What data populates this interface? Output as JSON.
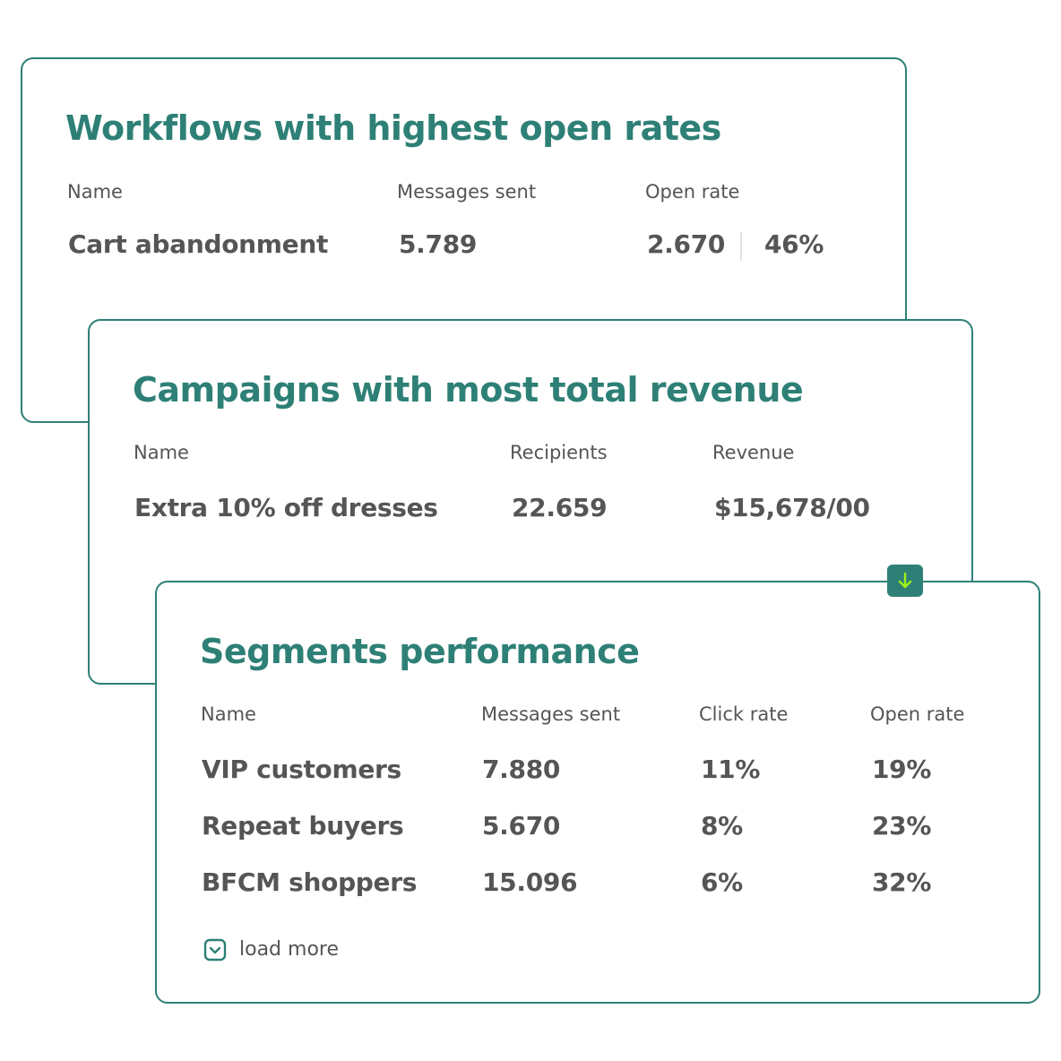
{
  "workflows": {
    "title": "Workflows with highest open rates",
    "headers": {
      "name": "Name",
      "messages_sent": "Messages sent",
      "open_rate": "Open rate"
    },
    "row": {
      "name": "Cart abandonment",
      "messages_sent": "5.789",
      "opens": "2.670",
      "open_rate": "46%"
    }
  },
  "campaigns": {
    "title": "Campaigns with most total revenue",
    "headers": {
      "name": "Name",
      "recipients": "Recipients",
      "revenue": "Revenue"
    },
    "row": {
      "name": "Extra 10% off dresses",
      "recipients": "22.659",
      "revenue": "$15,678/00"
    }
  },
  "segments": {
    "title": "Segments performance",
    "headers": {
      "name": "Name",
      "messages_sent": "Messages sent",
      "click_rate": "Click rate",
      "open_rate": "Open rate"
    },
    "rows": [
      {
        "name": "VIP customers",
        "messages_sent": "7.880",
        "click_rate": "11%",
        "open_rate": "19%"
      },
      {
        "name": "Repeat buyers",
        "messages_sent": "5.670",
        "click_rate": "8%",
        "open_rate": "23%"
      },
      {
        "name": "BFCM shoppers",
        "messages_sent": "15.096",
        "click_rate": "6%",
        "open_rate": "32%"
      }
    ],
    "load_more": "load more"
  },
  "icons": {
    "badge": "arrow-down-icon",
    "load_more": "chevron-down-square-icon"
  },
  "colors": {
    "accent": "#2e8076",
    "arrow": "#9ef01a",
    "text": "#555555",
    "background": "#ffffff"
  }
}
